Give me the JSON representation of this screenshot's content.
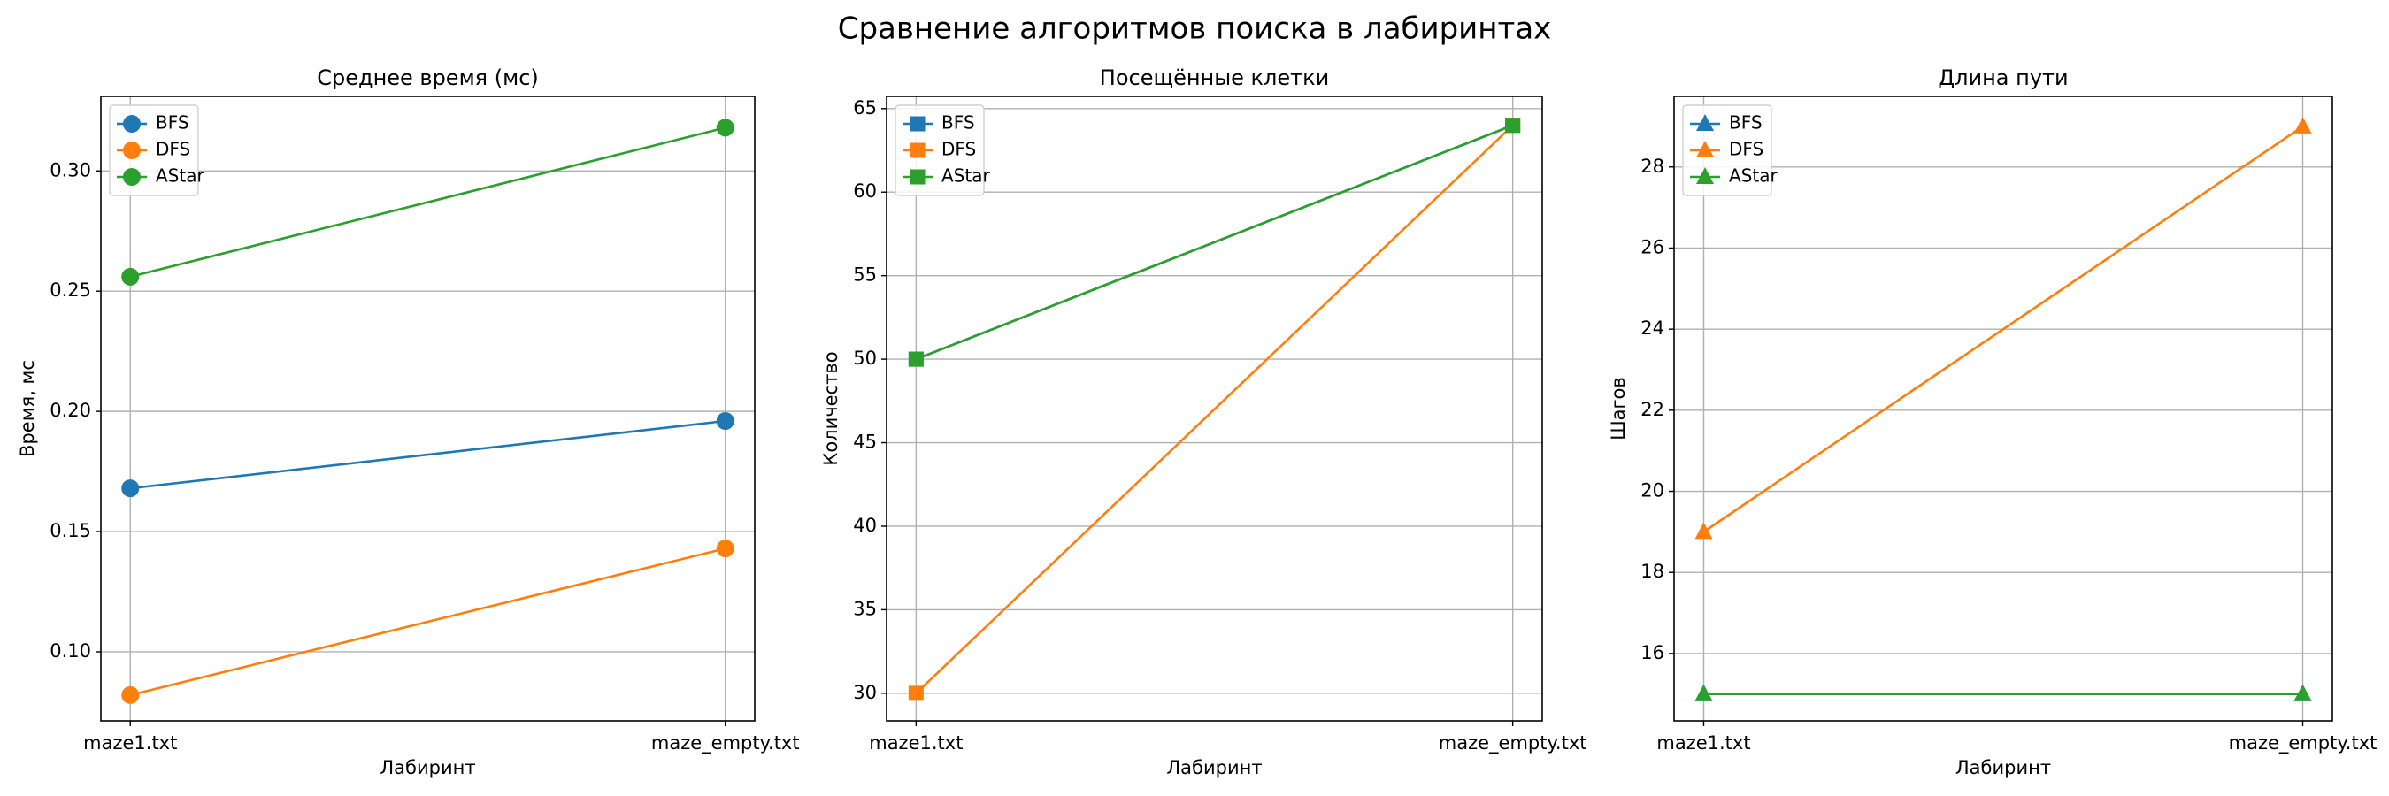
{
  "title": "Сравнение алгоритмов поиска в лабиринтах",
  "chart_data": [
    {
      "type": "line",
      "title": "Среднее время (мс)",
      "xlabel": "Лабиринт",
      "ylabel": "Время, мс",
      "categories": [
        "maze1.txt",
        "maze_empty.txt"
      ],
      "marker": "circle",
      "series": [
        {
          "name": "BFS",
          "color": "#1f77b4",
          "values": [
            0.168,
            0.196
          ]
        },
        {
          "name": "DFS",
          "color": "#ff7f0e",
          "values": [
            0.082,
            0.143
          ]
        },
        {
          "name": "AStar",
          "color": "#2ca02c",
          "values": [
            0.256,
            0.318
          ]
        }
      ],
      "ylim": [
        0.0713,
        0.331
      ],
      "yticks": [
        {
          "value": 0.1,
          "label": "0.10"
        },
        {
          "value": 0.15,
          "label": "0.15"
        },
        {
          "value": 0.2,
          "label": "0.20"
        },
        {
          "value": 0.25,
          "label": "0.25"
        },
        {
          "value": 0.3,
          "label": "0.30"
        }
      ],
      "grid": true,
      "legend": "upper left"
    },
    {
      "type": "line",
      "title": "Посещённые клетки",
      "xlabel": "Лабиринт",
      "ylabel": "Количество",
      "categories": [
        "maze1.txt",
        "maze_empty.txt"
      ],
      "marker": "square",
      "series": [
        {
          "name": "BFS",
          "color": "#1f77b4",
          "values": [
            50,
            64
          ]
        },
        {
          "name": "DFS",
          "color": "#ff7f0e",
          "values": [
            30,
            64
          ]
        },
        {
          "name": "AStar",
          "color": "#2ca02c",
          "values": [
            50,
            64
          ]
        }
      ],
      "ylim": [
        28.35,
        65.73
      ],
      "yticks": [
        30,
        35,
        40,
        45,
        50,
        55,
        60,
        65
      ],
      "grid": true,
      "legend": "upper left"
    },
    {
      "type": "line",
      "title": "Длина пути",
      "xlabel": "Лабиринт",
      "ylabel": "Шагов",
      "categories": [
        "maze1.txt",
        "maze_empty.txt"
      ],
      "marker": "triangle",
      "series": [
        {
          "name": "BFS",
          "color": "#1f77b4",
          "values": [
            15,
            15
          ]
        },
        {
          "name": "DFS",
          "color": "#ff7f0e",
          "values": [
            19,
            29
          ]
        },
        {
          "name": "AStar",
          "color": "#2ca02c",
          "values": [
            15,
            15
          ]
        }
      ],
      "ylim": [
        14.34,
        29.74
      ],
      "yticks": [
        16,
        18,
        20,
        22,
        24,
        26,
        28
      ],
      "grid": true,
      "legend": "upper left"
    }
  ]
}
